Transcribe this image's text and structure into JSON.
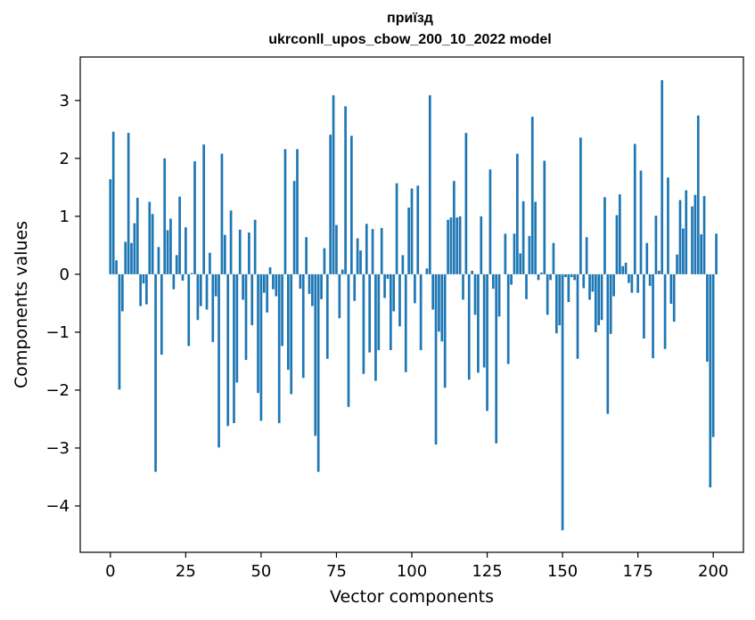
{
  "chart_data": {
    "type": "bar",
    "title": "приїзд",
    "subtitle": "ukrconll_upos_cbow_200_10_2022 model",
    "xlabel": "Vector components",
    "ylabel": "Components values",
    "xlim": [
      -10,
      210
    ],
    "ylim": [
      -4.8,
      3.75
    ],
    "xticks": [
      0,
      25,
      50,
      75,
      100,
      125,
      150,
      175,
      200
    ],
    "yticks": [
      -4,
      -3,
      -2,
      -1,
      0,
      1,
      2,
      3
    ],
    "bar_color": "#1f77b4",
    "grid": false,
    "values": [
      1.64,
      2.46,
      0.24,
      -1.99,
      -0.64,
      0.56,
      2.44,
      0.54,
      0.88,
      1.32,
      -0.55,
      -0.16,
      -0.52,
      1.25,
      1.04,
      -3.41,
      0.47,
      -1.39,
      2.0,
      0.76,
      0.96,
      -0.26,
      0.33,
      1.34,
      -0.11,
      0.81,
      -1.24,
      0.02,
      1.95,
      -0.79,
      -0.55,
      2.24,
      -0.61,
      0.37,
      -1.17,
      -0.38,
      -2.99,
      2.08,
      0.68,
      -2.62,
      1.1,
      -2.57,
      -1.87,
      0.77,
      -0.44,
      -1.48,
      0.72,
      -0.88,
      0.94,
      -2.05,
      -2.53,
      -0.32,
      -0.66,
      0.12,
      -0.26,
      -0.38,
      -2.57,
      -1.24,
      2.16,
      -1.65,
      -2.07,
      1.61,
      2.16,
      -0.25,
      -1.79,
      0.64,
      -0.34,
      -0.55,
      -2.79,
      -3.41,
      -0.43,
      0.45,
      -1.46,
      2.41,
      3.09,
      0.85,
      -0.76,
      0.08,
      2.9,
      -2.29,
      2.39,
      -0.46,
      0.62,
      0.41,
      -1.72,
      0.87,
      -1.35,
      0.78,
      -1.84,
      -1.31,
      0.8,
      -0.41,
      -0.08,
      -1.31,
      -0.64,
      1.57,
      -0.9,
      0.33,
      -1.69,
      1.15,
      1.48,
      -0.5,
      1.53,
      -1.31,
      0.0,
      0.1,
      3.09,
      -0.61,
      -2.94,
      -0.99,
      -1.16,
      -1.96,
      0.94,
      0.98,
      1.61,
      0.98,
      1.0,
      -0.44,
      2.44,
      -1.82,
      0.06,
      -0.7,
      -1.7,
      1.0,
      -1.61,
      -2.36,
      1.81,
      -0.25,
      -2.92,
      -0.73,
      0.0,
      0.7,
      -1.55,
      -0.18,
      0.7,
      2.08,
      0.36,
      1.26,
      -0.43,
      0.66,
      2.72,
      1.25,
      -0.1,
      0.03,
      1.96,
      -0.7,
      -0.1,
      0.54,
      -1.02,
      -0.88,
      -4.42,
      -0.05,
      -0.48,
      -0.05,
      -0.1,
      -1.46,
      2.36,
      -0.24,
      0.64,
      -0.44,
      -0.3,
      -1.0,
      -0.88,
      -0.79,
      1.33,
      -2.41,
      -1.03,
      -0.38,
      1.02,
      1.38,
      0.14,
      0.2,
      -0.15,
      -0.32,
      2.25,
      -0.32,
      1.79,
      -1.11,
      0.54,
      -0.2,
      -1.45,
      1.01,
      0.06,
      3.35,
      -1.29,
      1.67,
      -0.51,
      -0.82,
      0.34,
      1.28,
      0.79,
      1.45,
      0.0,
      1.17,
      1.37,
      2.74,
      0.69,
      1.35,
      -1.51,
      -3.68,
      -2.81,
      0.7
    ]
  }
}
